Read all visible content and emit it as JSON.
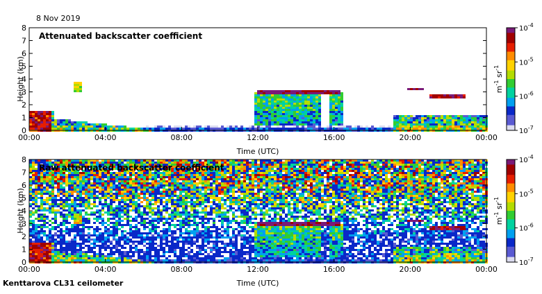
{
  "header": {
    "date": "8 Nov 2019"
  },
  "footer": {
    "instrument": "Kenttarova CL31 ceilometer"
  },
  "colors": {
    "scale": [
      "#dcdcf0",
      "#5a5ad2",
      "#0a28c8",
      "#00a0f0",
      "#00d2a0",
      "#32cd32",
      "#b4dc00",
      "#ffd200",
      "#ff8c00",
      "#e61e00",
      "#a00000",
      "#7a1a78"
    ],
    "frame": "#000000"
  },
  "chart_data": [
    {
      "type": "heatmap",
      "title": "Attenuated backscatter coefficient",
      "xlabel": "Time (UTC)",
      "ylabel": "Height (km)",
      "x_ticks": [
        "00:00",
        "04:00",
        "08:00",
        "12:00",
        "16:00",
        "20:00",
        "00:00"
      ],
      "xlim_hours": [
        0,
        24
      ],
      "y_ticks": [
        "0",
        "1",
        "2",
        "3",
        "4",
        "5",
        "6",
        "7",
        "8"
      ],
      "ylim": [
        0,
        8
      ],
      "colorbar": {
        "ticks": [
          "10",
          "10",
          "10",
          "10"
        ],
        "exponents": [
          "-4",
          "-5",
          "-6",
          "-7"
        ],
        "label_base": "m",
        "label_exp1": "-1",
        "label_mid": " sr",
        "label_exp2": "-1",
        "scale": "log",
        "range": [
          1e-07,
          0.0001
        ]
      },
      "features": [
        {
          "name": "cloud layer",
          "start_hour": 11.9,
          "end_hour": 16.3,
          "height_km": 3.05
        },
        {
          "name": "cloud layer",
          "start_hour": 19.7,
          "end_hour": 20.7,
          "height_km": 3.35
        },
        {
          "name": "cloud layer",
          "start_hour": 20.9,
          "end_hour": 22.8,
          "height_km": 2.75
        }
      ]
    },
    {
      "type": "heatmap",
      "title": "Raw attenuated backscatter coefficient",
      "xlabel": "Time (UTC)",
      "ylabel": "Height (km)",
      "x_ticks": [
        "00:00",
        "04:00",
        "08:00",
        "12:00",
        "16:00",
        "20:00",
        "00:00"
      ],
      "xlim_hours": [
        0,
        24
      ],
      "y_ticks": [
        "0",
        "1",
        "2",
        "3",
        "4",
        "5",
        "6",
        "7",
        "8"
      ],
      "ylim": [
        0,
        8
      ],
      "colorbar": {
        "ticks": [
          "10",
          "10",
          "10",
          "10"
        ],
        "exponents": [
          "-4",
          "-5",
          "-6",
          "-7"
        ],
        "label_base": "m",
        "label_exp1": "-1",
        "label_mid": " sr",
        "label_exp2": "-1",
        "scale": "log",
        "range": [
          1e-07,
          0.0001
        ]
      },
      "features": [
        {
          "name": "cloud layer",
          "start_hour": 11.9,
          "end_hour": 16.3,
          "height_km": 3.05
        },
        {
          "name": "cloud layer",
          "start_hour": 19.7,
          "end_hour": 20.7,
          "height_km": 3.35
        },
        {
          "name": "cloud layer",
          "start_hour": 20.9,
          "end_hour": 22.8,
          "height_km": 2.75
        }
      ]
    }
  ]
}
